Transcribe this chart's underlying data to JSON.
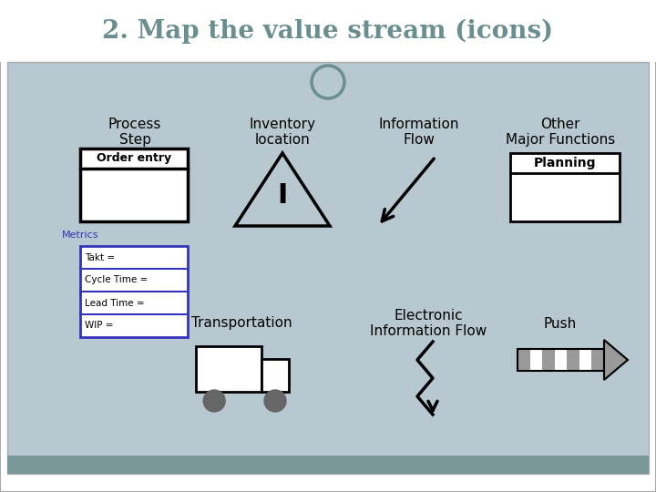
{
  "title": "2. Map the value stream (icons)",
  "title_color": "#6b8f8f",
  "title_fontsize": 20,
  "bg_color": "#b8c8d0",
  "footer_color": "#7a9898",
  "white": "#ffffff",
  "black": "#000000",
  "blue": "#3333bb",
  "gray": "#888888",
  "light_gray": "#cccccc",
  "mid_gray": "#999999",
  "labels": {
    "process_step": "Process\nStep",
    "inventory": "Inventory\nlocation",
    "info_flow": "Information\nFlow",
    "other": "Other\nMajor Functions",
    "order_entry": "Order entry",
    "metrics": "Metrics",
    "takt": "Takt =",
    "cycle": "Cycle Time =",
    "lead": "Lead Time =",
    "wip": "WIP =",
    "planning": "Planning",
    "transportation": "Transportation",
    "elec_info": "Electronic\nInformation Flow",
    "push": "Push"
  }
}
